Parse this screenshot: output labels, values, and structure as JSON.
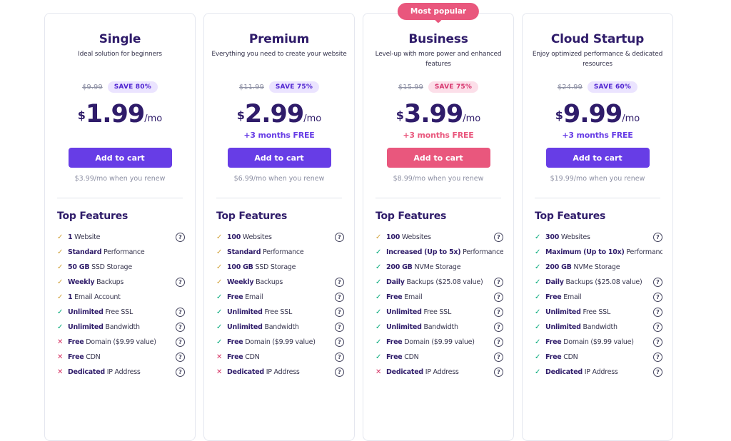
{
  "colors": {
    "brand_purple": "#673de6",
    "pink": "#e9577d",
    "heading": "#2f1c6a",
    "text": "#36344d",
    "muted": "#8c8fa3",
    "border": "#e4e7ef",
    "divider": "#e0e3eb",
    "save_purple_bg": "#ebe4ff",
    "save_purple_text": "#5025d1",
    "save_pink_bg": "#fcdfe9",
    "save_pink_text": "#d6336c",
    "check_yellow": "#d1a33c",
    "check_green": "#00a878",
    "cross_red": "#d63163",
    "help": "#44445e"
  },
  "icons": {
    "check": "✓",
    "cross": "✕",
    "help": "?"
  },
  "plans": [
    {
      "name": "Single",
      "tagline": "Ideal solution for beginners",
      "badge": "",
      "old_price": "$9.99",
      "save_label": "SAVE 80%",
      "save_theme": "purple",
      "currency": "$",
      "price": "1.99",
      "period": "/mo",
      "bonus": "",
      "bonus_theme": "purple",
      "cta_label": "Add to cart",
      "cta_theme": "purple",
      "renewal": "$3.99/mo when you renew",
      "features_title": "Top Features",
      "features": [
        {
          "icon": "check",
          "tone": "yellow",
          "bold": "1",
          "rest": "Website",
          "help": true
        },
        {
          "icon": "check",
          "tone": "yellow",
          "bold": "Standard",
          "rest": "Performance",
          "help": false
        },
        {
          "icon": "check",
          "tone": "yellow",
          "bold": "50 GB",
          "rest": "SSD Storage",
          "help": false
        },
        {
          "icon": "check",
          "tone": "yellow",
          "bold": "Weekly",
          "rest": "Backups",
          "help": true
        },
        {
          "icon": "check",
          "tone": "yellow",
          "bold": "1",
          "rest": "Email Account",
          "help": false
        },
        {
          "icon": "check",
          "tone": "green",
          "bold": "Unlimited",
          "rest": "Free SSL",
          "help": true
        },
        {
          "icon": "check",
          "tone": "green",
          "bold": "Unlimited",
          "rest": "Bandwidth",
          "help": true
        },
        {
          "icon": "cross",
          "tone": "red",
          "bold": "Free",
          "rest": "Domain ($9.99 value)",
          "help": true
        },
        {
          "icon": "cross",
          "tone": "red",
          "bold": "Free",
          "rest": "CDN",
          "help": true
        },
        {
          "icon": "cross",
          "tone": "red",
          "bold": "Dedicated",
          "rest": "IP Address",
          "help": true
        }
      ]
    },
    {
      "name": "Premium",
      "tagline": "Everything you need to create your website",
      "badge": "",
      "old_price": "$11.99",
      "save_label": "SAVE 75%",
      "save_theme": "purple",
      "currency": "$",
      "price": "2.99",
      "period": "/mo",
      "bonus": "+3 months FREE",
      "bonus_theme": "purple",
      "cta_label": "Add to cart",
      "cta_theme": "purple",
      "renewal": "$6.99/mo when you renew",
      "features_title": "Top Features",
      "features": [
        {
          "icon": "check",
          "tone": "yellow",
          "bold": "100",
          "rest": "Websites",
          "help": true
        },
        {
          "icon": "check",
          "tone": "yellow",
          "bold": "Standard",
          "rest": "Performance",
          "help": false
        },
        {
          "icon": "check",
          "tone": "yellow",
          "bold": "100 GB",
          "rest": "SSD Storage",
          "help": false
        },
        {
          "icon": "check",
          "tone": "yellow",
          "bold": "Weekly",
          "rest": "Backups",
          "help": true
        },
        {
          "icon": "check",
          "tone": "green",
          "bold": "Free",
          "rest": "Email",
          "help": true
        },
        {
          "icon": "check",
          "tone": "green",
          "bold": "Unlimited",
          "rest": "Free SSL",
          "help": true
        },
        {
          "icon": "check",
          "tone": "green",
          "bold": "Unlimited",
          "rest": "Bandwidth",
          "help": true
        },
        {
          "icon": "check",
          "tone": "green",
          "bold": "Free",
          "rest": "Domain ($9.99 value)",
          "help": true
        },
        {
          "icon": "cross",
          "tone": "red",
          "bold": "Free",
          "rest": "CDN",
          "help": true
        },
        {
          "icon": "cross",
          "tone": "red",
          "bold": "Dedicated",
          "rest": "IP Address",
          "help": true
        }
      ]
    },
    {
      "name": "Business",
      "tagline": "Level-up with more power and enhanced features",
      "badge": "Most popular",
      "old_price": "$15.99",
      "save_label": "SAVE 75%",
      "save_theme": "pink",
      "currency": "$",
      "price": "3.99",
      "period": "/mo",
      "bonus": "+3 months FREE",
      "bonus_theme": "pink",
      "cta_label": "Add to cart",
      "cta_theme": "pink",
      "renewal": "$8.99/mo when you renew",
      "features_title": "Top Features",
      "features": [
        {
          "icon": "check",
          "tone": "yellow",
          "bold": "100",
          "rest": "Websites",
          "help": true
        },
        {
          "icon": "check",
          "tone": "green",
          "bold": "Increased (Up to 5x)",
          "rest": "Performance",
          "help": false
        },
        {
          "icon": "check",
          "tone": "green",
          "bold": "200 GB",
          "rest": "NVMe Storage",
          "help": false
        },
        {
          "icon": "check",
          "tone": "green",
          "bold": "Daily",
          "rest": "Backups ($25.08 value)",
          "help": true
        },
        {
          "icon": "check",
          "tone": "green",
          "bold": "Free",
          "rest": "Email",
          "help": true
        },
        {
          "icon": "check",
          "tone": "green",
          "bold": "Unlimited",
          "rest": "Free SSL",
          "help": true
        },
        {
          "icon": "check",
          "tone": "green",
          "bold": "Unlimited",
          "rest": "Bandwidth",
          "help": true
        },
        {
          "icon": "check",
          "tone": "green",
          "bold": "Free",
          "rest": "Domain ($9.99 value)",
          "help": true
        },
        {
          "icon": "check",
          "tone": "green",
          "bold": "Free",
          "rest": "CDN",
          "help": true
        },
        {
          "icon": "cross",
          "tone": "red",
          "bold": "Dedicated",
          "rest": "IP Address",
          "help": true
        }
      ]
    },
    {
      "name": "Cloud Startup",
      "tagline": "Enjoy optimized performance & dedicated resources",
      "badge": "",
      "old_price": "$24.99",
      "save_label": "SAVE 60%",
      "save_theme": "purple",
      "currency": "$",
      "price": "9.99",
      "period": "/mo",
      "bonus": "+3 months FREE",
      "bonus_theme": "purple",
      "cta_label": "Add to cart",
      "cta_theme": "purple",
      "renewal": "$19.99/mo when you renew",
      "features_title": "Top Features",
      "features": [
        {
          "icon": "check",
          "tone": "green",
          "bold": "300",
          "rest": "Websites",
          "help": true
        },
        {
          "icon": "check",
          "tone": "green",
          "bold": "Maximum (Up to 10x)",
          "rest": "Performance",
          "help": false
        },
        {
          "icon": "check",
          "tone": "green",
          "bold": "200 GB",
          "rest": "NVMe Storage",
          "help": false
        },
        {
          "icon": "check",
          "tone": "green",
          "bold": "Daily",
          "rest": "Backups ($25.08 value)",
          "help": true
        },
        {
          "icon": "check",
          "tone": "green",
          "bold": "Free",
          "rest": "Email",
          "help": true
        },
        {
          "icon": "check",
          "tone": "green",
          "bold": "Unlimited",
          "rest": "Free SSL",
          "help": true
        },
        {
          "icon": "check",
          "tone": "green",
          "bold": "Unlimited",
          "rest": "Bandwidth",
          "help": true
        },
        {
          "icon": "check",
          "tone": "green",
          "bold": "Free",
          "rest": "Domain ($9.99 value)",
          "help": true
        },
        {
          "icon": "check",
          "tone": "green",
          "bold": "Free",
          "rest": "CDN",
          "help": true
        },
        {
          "icon": "check",
          "tone": "green",
          "bold": "Dedicated",
          "rest": "IP Address",
          "help": true
        }
      ]
    }
  ]
}
